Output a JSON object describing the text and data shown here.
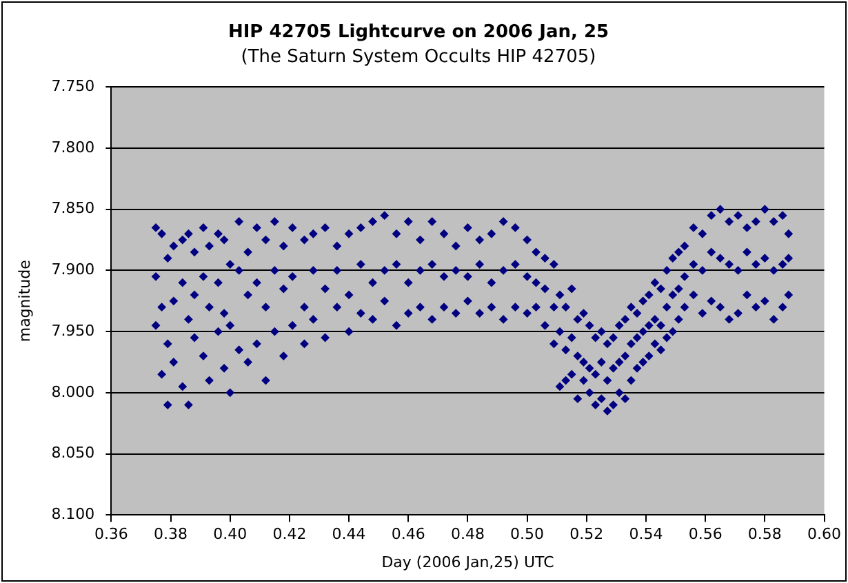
{
  "chart_data": {
    "type": "scatter",
    "title": "HIP 42705 Lightcurve on 2006 Jan, 25",
    "subtitle": "(The Saturn System Occults HIP 42705)",
    "xlabel": "Day (2006 Jan,25) UTC",
    "ylabel": "magnitude",
    "xlim": [
      0.36,
      0.6
    ],
    "xticks": [
      0.36,
      0.38,
      {
        "value": 0.4,
        "label": "0.40"
      },
      0.42,
      0.44,
      0.46,
      0.48,
      {
        "value": 0.5,
        "label": "0.50"
      },
      0.52,
      0.54,
      0.56,
      0.58,
      {
        "value": 0.6,
        "label": "0.60"
      }
    ],
    "ylim": [
      8.1,
      7.75
    ],
    "yticks": [
      {
        "value": 7.75,
        "label": "7.750"
      },
      {
        "value": 7.8,
        "label": "7.800"
      },
      {
        "value": 7.85,
        "label": "7.850"
      },
      {
        "value": 7.9,
        "label": "7.900"
      },
      {
        "value": 7.95,
        "label": "7.950"
      },
      {
        "value": 8.0,
        "label": "8.000"
      },
      {
        "value": 8.05,
        "label": "8.050"
      },
      {
        "value": 8.1,
        "label": "8.100"
      }
    ],
    "grid": "y",
    "legend": false,
    "marker": "diamond",
    "series": [
      {
        "color": "#000080",
        "x": [
          0.375,
          0.375,
          0.375,
          0.377,
          0.377,
          0.377,
          0.379,
          0.379,
          0.379,
          0.381,
          0.381,
          0.381,
          0.384,
          0.384,
          0.384,
          0.386,
          0.386,
          0.386,
          0.388,
          0.388,
          0.388,
          0.391,
          0.391,
          0.391,
          0.393,
          0.393,
          0.393,
          0.396,
          0.396,
          0.396,
          0.398,
          0.398,
          0.398,
          0.4,
          0.4,
          0.4,
          0.403,
          0.403,
          0.403,
          0.406,
          0.406,
          0.406,
          0.409,
          0.409,
          0.409,
          0.412,
          0.412,
          0.412,
          0.415,
          0.415,
          0.415,
          0.418,
          0.418,
          0.418,
          0.421,
          0.421,
          0.421,
          0.425,
          0.425,
          0.425,
          0.428,
          0.428,
          0.428,
          0.432,
          0.432,
          0.432,
          0.436,
          0.436,
          0.436,
          0.44,
          0.44,
          0.44,
          0.444,
          0.444,
          0.444,
          0.448,
          0.448,
          0.448,
          0.452,
          0.452,
          0.452,
          0.456,
          0.456,
          0.456,
          0.46,
          0.46,
          0.46,
          0.464,
          0.464,
          0.464,
          0.468,
          0.468,
          0.468,
          0.472,
          0.472,
          0.472,
          0.476,
          0.476,
          0.476,
          0.48,
          0.48,
          0.48,
          0.484,
          0.484,
          0.484,
          0.488,
          0.488,
          0.488,
          0.492,
          0.492,
          0.492,
          0.496,
          0.496,
          0.496,
          0.5,
          0.5,
          0.5,
          0.503,
          0.503,
          0.503,
          0.506,
          0.506,
          0.506,
          0.509,
          0.509,
          0.509,
          0.511,
          0.511,
          0.511,
          0.513,
          0.513,
          0.513,
          0.515,
          0.515,
          0.515,
          0.517,
          0.517,
          0.517,
          0.519,
          0.519,
          0.519,
          0.521,
          0.521,
          0.521,
          0.523,
          0.523,
          0.523,
          0.525,
          0.525,
          0.525,
          0.527,
          0.527,
          0.527,
          0.529,
          0.529,
          0.529,
          0.531,
          0.531,
          0.531,
          0.533,
          0.533,
          0.533,
          0.535,
          0.535,
          0.535,
          0.537,
          0.537,
          0.537,
          0.539,
          0.539,
          0.539,
          0.541,
          0.541,
          0.541,
          0.543,
          0.543,
          0.543,
          0.545,
          0.545,
          0.545,
          0.547,
          0.547,
          0.547,
          0.549,
          0.549,
          0.549,
          0.551,
          0.551,
          0.551,
          0.553,
          0.553,
          0.553,
          0.556,
          0.556,
          0.556,
          0.559,
          0.559,
          0.559,
          0.562,
          0.562,
          0.562,
          0.565,
          0.565,
          0.565,
          0.568,
          0.568,
          0.568,
          0.571,
          0.571,
          0.571,
          0.574,
          0.574,
          0.574,
          0.577,
          0.577,
          0.577,
          0.58,
          0.58,
          0.58,
          0.583,
          0.583,
          0.583,
          0.586,
          0.586,
          0.586,
          0.588,
          0.588,
          0.588
        ],
        "values": [
          7.865,
          7.905,
          7.945,
          7.87,
          7.93,
          7.985,
          7.89,
          7.96,
          8.01,
          7.88,
          7.925,
          7.975,
          7.875,
          7.91,
          7.995,
          7.87,
          7.94,
          8.01,
          7.885,
          7.92,
          7.955,
          7.865,
          7.905,
          7.97,
          7.88,
          7.93,
          7.99,
          7.87,
          7.91,
          7.95,
          7.875,
          7.935,
          7.98,
          7.895,
          7.945,
          8.0,
          7.86,
          7.9,
          7.965,
          7.885,
          7.92,
          7.975,
          7.865,
          7.91,
          7.96,
          7.875,
          7.93,
          7.99,
          7.86,
          7.9,
          7.95,
          7.88,
          7.915,
          7.97,
          7.865,
          7.905,
          7.945,
          7.875,
          7.93,
          7.96,
          7.87,
          7.9,
          7.94,
          7.865,
          7.915,
          7.955,
          7.88,
          7.9,
          7.93,
          7.87,
          7.92,
          7.95,
          7.865,
          7.895,
          7.935,
          7.86,
          7.91,
          7.94,
          7.855,
          7.9,
          7.925,
          7.87,
          7.895,
          7.945,
          7.86,
          7.91,
          7.935,
          7.875,
          7.9,
          7.93,
          7.86,
          7.895,
          7.94,
          7.87,
          7.905,
          7.93,
          7.88,
          7.9,
          7.935,
          7.865,
          7.905,
          7.925,
          7.875,
          7.895,
          7.935,
          7.87,
          7.91,
          7.93,
          7.86,
          7.9,
          7.94,
          7.865,
          7.895,
          7.93,
          7.875,
          7.905,
          7.935,
          7.885,
          7.91,
          7.93,
          7.89,
          7.915,
          7.945,
          7.895,
          7.93,
          7.96,
          7.92,
          7.95,
          7.995,
          7.93,
          7.965,
          7.99,
          7.915,
          7.955,
          7.985,
          7.94,
          7.97,
          8.005,
          7.935,
          7.975,
          7.99,
          7.945,
          7.98,
          8.0,
          7.955,
          7.985,
          8.01,
          7.95,
          7.975,
          8.005,
          7.96,
          7.99,
          8.015,
          7.955,
          7.98,
          8.01,
          7.945,
          7.975,
          8.0,
          7.94,
          7.97,
          8.005,
          7.93,
          7.96,
          7.99,
          7.935,
          7.955,
          7.98,
          7.925,
          7.95,
          7.975,
          7.92,
          7.945,
          7.97,
          7.91,
          7.94,
          7.96,
          7.915,
          7.945,
          7.965,
          7.9,
          7.93,
          7.955,
          7.89,
          7.92,
          7.95,
          7.885,
          7.915,
          7.94,
          7.88,
          7.905,
          7.93,
          7.865,
          7.895,
          7.92,
          7.87,
          7.9,
          7.935,
          7.855,
          7.885,
          7.925,
          7.85,
          7.89,
          7.93,
          7.86,
          7.895,
          7.94,
          7.855,
          7.9,
          7.935,
          7.865,
          7.885,
          7.92,
          7.86,
          7.895,
          7.93,
          7.85,
          7.89,
          7.925,
          7.86,
          7.9,
          7.94,
          7.855,
          7.895,
          7.93,
          7.87,
          7.89,
          7.92
        ]
      }
    ]
  }
}
